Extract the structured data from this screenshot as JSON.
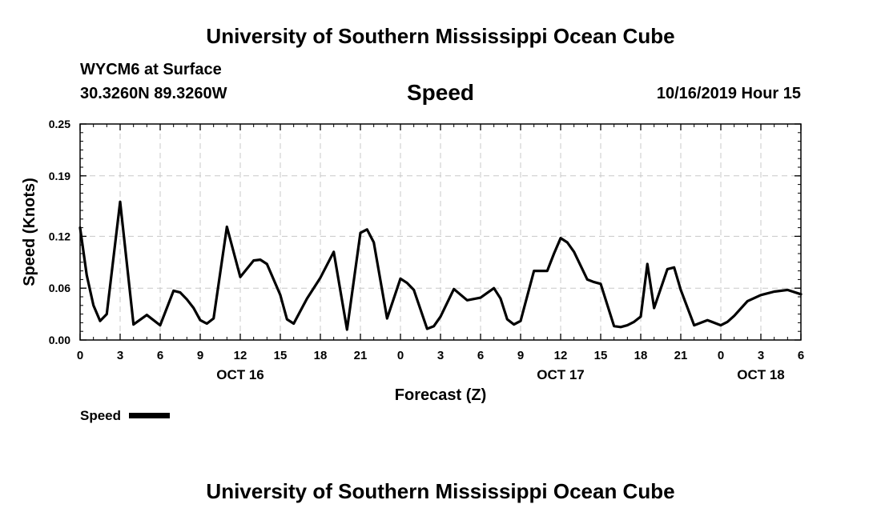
{
  "header": {
    "title": "University of Southern Mississippi Ocean Cube",
    "station": "WYCM6 at Surface",
    "coords": "30.3260N 89.3260W",
    "subtitle": "Speed",
    "date": "10/16/2019 Hour 15"
  },
  "footer": {
    "title": "University of Southern Mississippi Ocean Cube"
  },
  "colors": {
    "line": "#000000",
    "grid": "#c8c8c8",
    "background": "#ffffff"
  },
  "chart_data": {
    "type": "line",
    "title": "Speed",
    "xlabel": "Forecast (Z)",
    "ylabel": "Speed (Knots)",
    "xlim": [
      0,
      54
    ],
    "ylim": [
      0,
      0.25
    ],
    "yticks": [
      0,
      0.06,
      0.12,
      0.19,
      0.25
    ],
    "yticklabels": [
      "0.00",
      "0.06",
      "0.12",
      "0.19",
      "0.25"
    ],
    "xticks": [
      0,
      3,
      6,
      9,
      12,
      15,
      18,
      21,
      24,
      27,
      30,
      33,
      36,
      39,
      42,
      45,
      48,
      51,
      54
    ],
    "xticklabels": [
      "0",
      "3",
      "6",
      "9",
      "12",
      "15",
      "18",
      "21",
      "0",
      "3",
      "6",
      "9",
      "12",
      "15",
      "18",
      "21",
      "0",
      "3",
      "6"
    ],
    "date_labels": [
      {
        "x": 12,
        "label": "OCT 16"
      },
      {
        "x": 36,
        "label": "OCT 17"
      },
      {
        "x": 51,
        "label": "OCT 18"
      }
    ],
    "grid": true,
    "legend": [
      {
        "name": "Speed",
        "placement": "bottom-left"
      }
    ],
    "series": [
      {
        "name": "Speed",
        "x": [
          0,
          0.5,
          1,
          1.5,
          2,
          3,
          4,
          5,
          6,
          7,
          7.5,
          8,
          8.5,
          9,
          9.5,
          10,
          11,
          12,
          13,
          13.5,
          14,
          15,
          15.5,
          16,
          17,
          18,
          19,
          20,
          21,
          21.5,
          22,
          23,
          24,
          24.5,
          25,
          26,
          26.5,
          27,
          28,
          29,
          30,
          31,
          31.5,
          32,
          32.5,
          33,
          34,
          35,
          35.5,
          36,
          36.5,
          37,
          38,
          38.5,
          39,
          40,
          40.5,
          41,
          41.5,
          42,
          42.5,
          43,
          44,
          44.5,
          45,
          46,
          47,
          48,
          48.5,
          49,
          50,
          51,
          51.5,
          52,
          53,
          54
        ],
        "values": [
          0.13,
          0.075,
          0.04,
          0.022,
          0.03,
          0.16,
          0.018,
          0.029,
          0.017,
          0.057,
          0.055,
          0.047,
          0.037,
          0.023,
          0.019,
          0.025,
          0.131,
          0.073,
          0.092,
          0.093,
          0.088,
          0.052,
          0.024,
          0.019,
          0.048,
          0.072,
          0.102,
          0.012,
          0.124,
          0.128,
          0.113,
          0.025,
          0.071,
          0.066,
          0.058,
          0.013,
          0.016,
          0.027,
          0.059,
          0.046,
          0.049,
          0.06,
          0.048,
          0.024,
          0.018,
          0.022,
          0.08,
          0.08,
          0.1,
          0.118,
          0.113,
          0.102,
          0.07,
          0.067,
          0.065,
          0.016,
          0.015,
          0.017,
          0.021,
          0.027,
          0.088,
          0.037,
          0.082,
          0.084,
          0.058,
          0.017,
          0.023,
          0.017,
          0.021,
          0.028,
          0.045,
          0.052,
          0.054,
          0.056,
          0.058,
          0.053
        ]
      }
    ]
  }
}
